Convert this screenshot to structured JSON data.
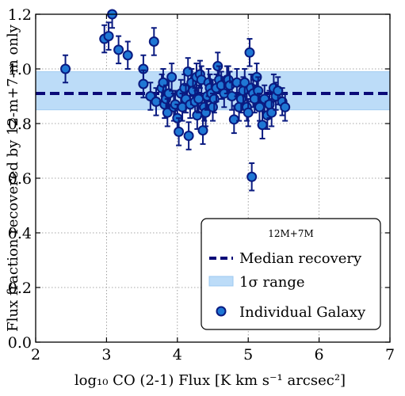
{
  "chart_data": {
    "type": "scatter",
    "xlabel": "log₁₀ CO (2-1) Flux [K km s⁻¹ arcsec²]",
    "ylabel": "Flux fraction recovered by 12-m+7-m only",
    "xlim": [
      2,
      7
    ],
    "ylim": [
      0,
      1.2
    ],
    "xticks": [
      "2",
      "3",
      "4",
      "5",
      "6",
      "7"
    ],
    "yticks": [
      "0.0",
      "0.2",
      "0.4",
      "0.6",
      "0.8",
      "1.0",
      "1.2"
    ],
    "grid": true,
    "median": 0.91,
    "sigma_range": [
      0.85,
      0.99
    ],
    "legend": {
      "title": "12M+7M",
      "placement": "bottom-right",
      "entries": [
        "Median recovery",
        "1σ range",
        "Individual Galaxy"
      ]
    },
    "colors": {
      "median_line": "#0a0a78",
      "band": "#bcdcf8",
      "marker_fill": "#1f77d4",
      "marker_edge": "#0a1a80",
      "errorbar": "#0a1a80"
    },
    "series": [
      {
        "error": 0.05,
        "points": [
          [
            2.42,
            1.0
          ],
          [
            2.97,
            1.11
          ],
          [
            3.03,
            1.12
          ],
          [
            3.08,
            1.2
          ],
          [
            3.17,
            1.07
          ],
          [
            3.3,
            1.05
          ],
          [
            3.52,
            1.0
          ],
          [
            3.52,
            0.945
          ],
          [
            3.62,
            0.9
          ],
          [
            3.67,
            1.1
          ],
          [
            3.7,
            0.88
          ],
          [
            3.78,
            0.93
          ],
          [
            3.8,
            0.95
          ],
          [
            3.82,
            0.87
          ],
          [
            3.84,
            0.89
          ],
          [
            3.86,
            0.84
          ],
          [
            3.88,
            0.91
          ],
          [
            3.92,
            0.97
          ],
          [
            3.95,
            0.86
          ],
          [
            3.97,
            0.87
          ],
          [
            4.0,
            0.82
          ],
          [
            4.02,
            0.77
          ],
          [
            4.05,
            0.91
          ],
          [
            4.07,
            0.86
          ],
          [
            4.1,
            0.93
          ],
          [
            4.12,
            0.89
          ],
          [
            4.15,
            0.99
          ],
          [
            4.16,
            0.755
          ],
          [
            4.18,
            0.87
          ],
          [
            4.2,
            0.95
          ],
          [
            4.22,
            0.92
          ],
          [
            4.25,
            0.88
          ],
          [
            4.27,
            0.97
          ],
          [
            4.28,
            0.83
          ],
          [
            4.3,
            0.89
          ],
          [
            4.32,
            0.98
          ],
          [
            4.34,
            0.96
          ],
          [
            4.36,
            0.775
          ],
          [
            4.38,
            0.86
          ],
          [
            4.4,
            0.84
          ],
          [
            4.42,
            0.9
          ],
          [
            4.44,
            0.95
          ],
          [
            4.46,
            0.93
          ],
          [
            4.48,
            0.91
          ],
          [
            4.5,
            0.86
          ],
          [
            4.52,
            0.89
          ],
          [
            4.55,
            0.93
          ],
          [
            4.57,
            1.01
          ],
          [
            4.59,
            0.96
          ],
          [
            4.62,
            0.94
          ],
          [
            4.66,
            0.91
          ],
          [
            4.7,
            0.96
          ],
          [
            4.72,
            0.96
          ],
          [
            4.74,
            0.94
          ],
          [
            4.77,
            0.9
          ],
          [
            4.8,
            0.815
          ],
          [
            4.84,
            0.95
          ],
          [
            4.87,
            0.86
          ],
          [
            4.9,
            0.89
          ],
          [
            4.93,
            0.92
          ],
          [
            4.95,
            0.95
          ],
          [
            4.98,
            0.86
          ],
          [
            5.0,
            0.84
          ],
          [
            5.02,
            1.06
          ],
          [
            5.04,
            0.93
          ],
          [
            5.05,
            0.605
          ],
          [
            5.07,
            0.91
          ],
          [
            5.09,
            0.89
          ],
          [
            5.12,
            0.97
          ],
          [
            5.14,
            0.92
          ],
          [
            5.16,
            0.86
          ],
          [
            5.2,
            0.795
          ],
          [
            5.23,
            0.89
          ],
          [
            5.27,
            0.83
          ],
          [
            5.3,
            0.87
          ],
          [
            5.33,
            0.84
          ],
          [
            5.36,
            0.93
          ],
          [
            5.39,
            0.9
          ],
          [
            5.42,
            0.92
          ],
          [
            5.48,
            0.88
          ],
          [
            5.52,
            0.86
          ]
        ]
      }
    ]
  }
}
